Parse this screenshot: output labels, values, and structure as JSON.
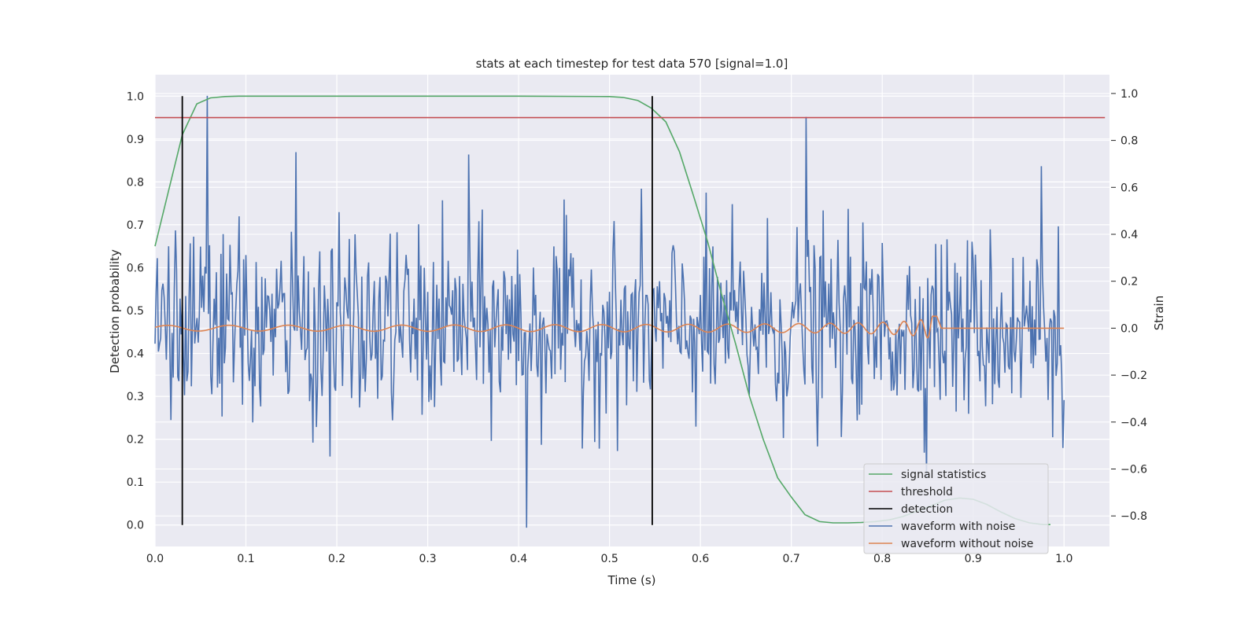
{
  "chart_data": {
    "type": "line",
    "title": "stats at each timestep for test data 570 [signal=1.0]",
    "xlabel": "Time (s)",
    "ylabel_left": "Detection probability",
    "ylabel_right": "Strain",
    "xlim": [
      0.0,
      1.05
    ],
    "ylim_left": [
      -0.05,
      1.05
    ],
    "ylim_right": [
      -0.93,
      1.08
    ],
    "x_ticks": [
      "0.0",
      "0.1",
      "0.2",
      "0.3",
      "0.4",
      "0.5",
      "0.6",
      "0.7",
      "0.8",
      "0.9",
      "1.0"
    ],
    "y_left_ticks": [
      "0.0",
      "0.1",
      "0.2",
      "0.3",
      "0.4",
      "0.5",
      "0.6",
      "0.7",
      "0.8",
      "0.9",
      "1.0"
    ],
    "y_right_ticks": [
      "−0.8",
      "−0.6",
      "−0.4",
      "−0.2",
      "0.0",
      "0.2",
      "0.4",
      "0.6",
      "0.8",
      "1.0"
    ],
    "grid": true,
    "legend_placement": "lower-right",
    "series": [
      {
        "name": "signal statistics",
        "axis": "left",
        "color": "#55a868",
        "x": [
          0.0,
          0.015,
          0.03,
          0.046,
          0.061,
          0.077,
          0.092,
          0.2,
          0.3,
          0.4,
          0.5,
          0.515,
          0.531,
          0.546,
          0.562,
          0.577,
          0.592,
          0.608,
          0.623,
          0.639,
          0.654,
          0.669,
          0.685,
          0.7,
          0.715,
          0.731,
          0.746,
          0.762,
          0.777,
          0.792,
          0.808,
          0.823,
          0.838,
          0.854,
          0.869,
          0.885,
          0.9,
          0.915,
          0.931,
          0.946,
          0.962,
          0.977,
          0.985
        ],
        "y": [
          0.65,
          0.78,
          0.91,
          0.982,
          0.996,
          0.999,
          1.0,
          1.0,
          1.0,
          1.0,
          0.999,
          0.997,
          0.99,
          0.972,
          0.94,
          0.87,
          0.77,
          0.66,
          0.54,
          0.42,
          0.3,
          0.2,
          0.11,
          0.065,
          0.024,
          0.008,
          0.005,
          0.005,
          0.006,
          0.008,
          0.012,
          0.02,
          0.032,
          0.045,
          0.058,
          0.063,
          0.06,
          0.048,
          0.03,
          0.015,
          0.005,
          0.001,
          0.001
        ]
      },
      {
        "name": "threshold",
        "axis": "left",
        "color": "#c44e52",
        "x": [
          0.0,
          1.045
        ],
        "y": [
          0.95,
          0.95
        ]
      },
      {
        "name": "detection",
        "axis": "left",
        "color": "#000000",
        "segments": [
          {
            "x": 0.03,
            "y": [
              0.0,
              1.0
            ]
          },
          {
            "x": 0.547,
            "y": [
              0.0,
              1.0
            ]
          }
        ]
      },
      {
        "name": "waveform with noise",
        "axis": "right",
        "color": "#4c72b0",
        "x_start": 0.0,
        "x_end": 1.0,
        "sampling": "800 samples, Gaussian noise of standard deviation ~0.2 around 0, range approx [−0.85, 0.99]",
        "peaks": [
          {
            "x": 0.058,
            "y": 0.99
          },
          {
            "x": 0.155,
            "y": 0.75
          },
          {
            "x": 0.345,
            "y": 0.74
          },
          {
            "x": 0.409,
            "y": -0.85
          },
          {
            "x": 0.716,
            "y": 0.9
          },
          {
            "x": 0.975,
            "y": 0.69
          }
        ]
      },
      {
        "name": "waveform without noise",
        "axis": "right",
        "color": "#dd8452",
        "x_start": 0.0,
        "x_end": 1.0,
        "description": "chirp around 0 with amplitude ~0.01 at t=0 growing to ~0.12 near t=0.855, frequency rising from ~13 Hz to ~70 Hz, then flat at 0 after t≈0.865",
        "merger_time": 0.86,
        "peak_amplitude": 0.12
      }
    ]
  }
}
